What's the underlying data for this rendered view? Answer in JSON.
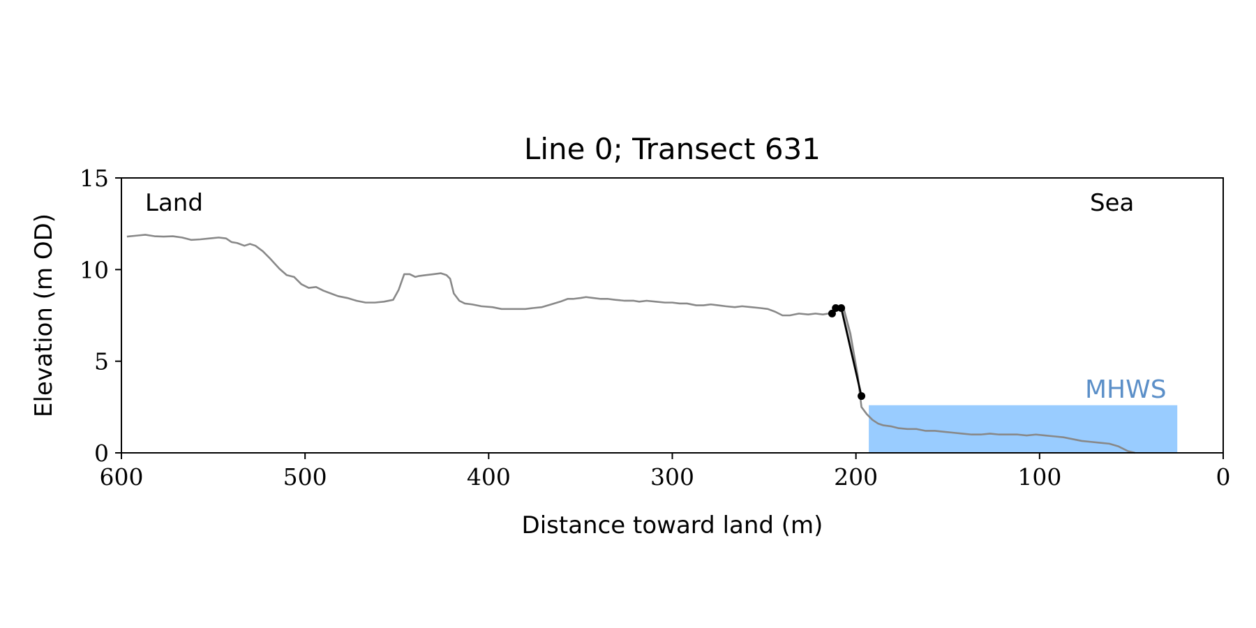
{
  "chart_data": {
    "type": "line",
    "title": "Line 0; Transect 631",
    "xlabel": "Distance toward land (m)",
    "ylabel": "Elevation (m OD)",
    "xlim": [
      600,
      0
    ],
    "ylim": [
      0,
      15
    ],
    "x_ticks": [
      600,
      500,
      400,
      300,
      200,
      100,
      0
    ],
    "y_ticks": [
      0,
      5,
      10,
      15
    ],
    "grid": false,
    "annotations": {
      "land": "Land",
      "sea": "Sea",
      "mhws": "MHWS"
    },
    "mhws": {
      "level": 2.6,
      "x_range": [
        193,
        25
      ]
    },
    "profile": {
      "x": [
        597,
        592,
        587,
        582,
        577,
        572,
        567,
        562,
        557,
        552,
        547,
        543,
        540,
        537,
        533,
        530,
        527,
        523,
        519,
        514,
        510,
        506,
        502,
        498,
        494,
        490,
        486,
        482,
        477,
        472,
        467,
        462,
        457,
        452,
        449,
        446,
        443,
        440,
        438,
        434,
        430,
        426,
        423,
        421,
        419,
        416,
        413,
        409,
        404,
        398,
        393,
        389,
        384,
        380,
        376,
        371,
        366,
        361,
        357,
        354,
        350,
        347,
        343,
        339,
        335,
        331,
        326,
        321,
        318,
        314,
        309,
        304,
        300,
        296,
        292,
        287,
        283,
        279,
        275,
        271,
        266,
        262,
        257,
        252,
        248,
        244,
        240,
        236,
        231,
        226,
        222,
        218,
        215,
        213,
        209,
        207,
        203,
        199,
        197,
        194,
        191,
        188,
        185,
        181,
        177,
        172,
        167,
        162,
        157,
        152,
        147,
        142,
        137,
        132,
        127,
        122,
        117,
        112,
        107,
        102,
        97,
        92,
        87,
        82,
        77,
        72,
        67,
        62,
        57,
        52,
        48
      ],
      "y": [
        11.8,
        11.85,
        11.9,
        11.82,
        11.8,
        11.82,
        11.75,
        11.62,
        11.65,
        11.7,
        11.75,
        11.7,
        11.5,
        11.45,
        11.3,
        11.4,
        11.3,
        11.0,
        10.6,
        10.05,
        9.7,
        9.6,
        9.2,
        9.0,
        9.05,
        8.85,
        8.7,
        8.55,
        8.45,
        8.3,
        8.2,
        8.2,
        8.25,
        8.35,
        8.9,
        9.75,
        9.75,
        9.6,
        9.65,
        9.7,
        9.75,
        9.8,
        9.7,
        9.5,
        8.7,
        8.3,
        8.15,
        8.1,
        8.0,
        7.95,
        7.85,
        7.85,
        7.85,
        7.85,
        7.9,
        7.95,
        8.1,
        8.25,
        8.4,
        8.4,
        8.45,
        8.5,
        8.45,
        8.4,
        8.4,
        8.35,
        8.3,
        8.3,
        8.25,
        8.3,
        8.25,
        8.2,
        8.2,
        8.15,
        8.15,
        8.05,
        8.05,
        8.1,
        8.05,
        8.0,
        7.95,
        8.0,
        7.95,
        7.9,
        7.85,
        7.7,
        7.5,
        7.5,
        7.6,
        7.55,
        7.6,
        7.55,
        7.6,
        7.7,
        7.9,
        8.0,
        6.5,
        4.2,
        2.5,
        2.1,
        1.8,
        1.6,
        1.5,
        1.45,
        1.35,
        1.3,
        1.3,
        1.2,
        1.2,
        1.15,
        1.1,
        1.05,
        1.0,
        1.0,
        1.05,
        1.0,
        1.0,
        1.0,
        0.95,
        1.0,
        0.95,
        0.9,
        0.85,
        0.75,
        0.65,
        0.6,
        0.55,
        0.5,
        0.35,
        0.1,
        0.0
      ]
    },
    "cliff_edge": {
      "x": [
        213,
        211,
        208,
        197
      ],
      "y": [
        7.6,
        7.9,
        7.9,
        3.1
      ]
    }
  }
}
